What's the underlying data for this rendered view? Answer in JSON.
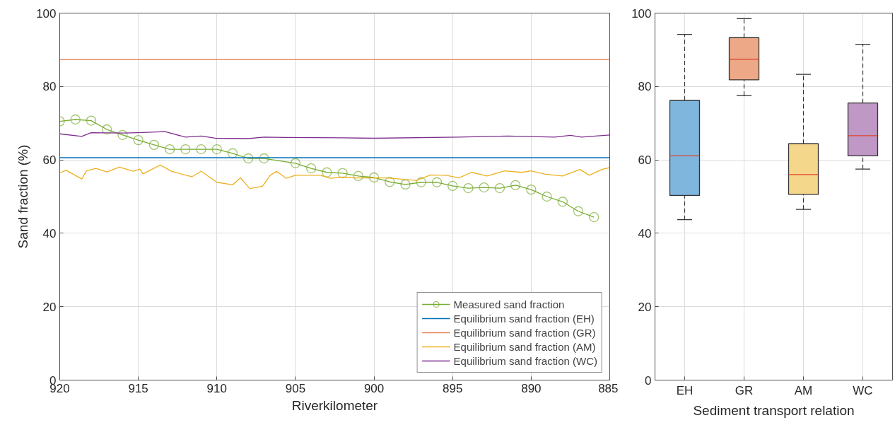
{
  "chart_data": [
    {
      "type": "line",
      "xlabel": "Riverkilometer",
      "ylabel": "Sand fraction (%)",
      "xlim": [
        920,
        885
      ],
      "xticks": [
        920,
        915,
        910,
        905,
        900,
        895,
        890,
        885
      ],
      "ylim": [
        0,
        100
      ],
      "yticks": [
        0,
        20,
        40,
        60,
        80,
        100
      ],
      "grid": true,
      "legend": "bottom right",
      "series": [
        {
          "name": "Measured sand fraction",
          "color": "#77ac30",
          "marker": "circle",
          "x": [
            920,
            919,
            918,
            917,
            916,
            915,
            914,
            913,
            912,
            911,
            910,
            909,
            908,
            907,
            905,
            904,
            903,
            902,
            901,
            900,
            899,
            898,
            897,
            896,
            895,
            894,
            893,
            892,
            891,
            890,
            889,
            888,
            887,
            886
          ],
          "values": [
            70.5,
            71.0,
            70.7,
            68.3,
            66.8,
            65.4,
            64.1,
            62.9,
            62.9,
            62.9,
            62.9,
            61.8,
            60.4,
            60.4,
            59.1,
            57.7,
            56.6,
            56.4,
            55.6,
            55.2,
            54.0,
            53.3,
            53.9,
            53.9,
            52.9,
            52.3,
            52.5,
            52.3,
            53.1,
            51.9,
            50.0,
            48.6,
            46.0,
            44.4
          ]
        },
        {
          "name": "Equilibrium sand fraction (EH)",
          "color": "#0072bd",
          "marker": "none",
          "x": [
            920,
            885
          ],
          "values": [
            60.6,
            60.6
          ]
        },
        {
          "name": "Equilibrium sand fraction (GR)",
          "color": "#e8845a",
          "marker": "none",
          "x": [
            920,
            885
          ],
          "values": [
            87.3,
            87.3
          ]
        },
        {
          "name": "Equilibrium sand fraction (AM)",
          "color": "#edb120",
          "marker": "none",
          "x": [
            920,
            919.6,
            918.6,
            918.3,
            917.7,
            917.0,
            916.2,
            915.3,
            914.9,
            914.7,
            913.6,
            912.9,
            911.6,
            911.0,
            910.0,
            909.0,
            908.5,
            907.9,
            907.1,
            906.6,
            906.2,
            905.6,
            905.0,
            903.4,
            902.8,
            902.0,
            901.1,
            899.2,
            897.3,
            896.4,
            895.4,
            894.6,
            893.8,
            892.8,
            891.7,
            890.6,
            890.0,
            889.1,
            888.0,
            886.9,
            886.3,
            885.5,
            885.0
          ],
          "values": [
            56.4,
            57.2,
            54.8,
            57.0,
            57.7,
            56.7,
            58.0,
            56.9,
            57.5,
            56.2,
            58.6,
            56.9,
            55.4,
            56.9,
            53.9,
            53.2,
            55.1,
            52.2,
            52.8,
            55.8,
            56.9,
            55.0,
            55.8,
            55.8,
            55.0,
            55.3,
            55.1,
            55.1,
            54.4,
            55.9,
            55.8,
            55.1,
            56.6,
            55.6,
            57.0,
            56.6,
            57.0,
            56.1,
            55.6,
            57.4,
            55.8,
            57.4,
            57.9
          ]
        },
        {
          "name": "Equilibrium sand fraction (WC)",
          "color": "#7e2f8e",
          "marker": "none",
          "x": [
            920,
            918.6,
            918.0,
            916.0,
            915.0,
            913.3,
            912.0,
            911.0,
            910.1,
            908.0,
            907.0,
            905.7,
            902.0,
            900.0,
            894.6,
            891.5,
            888.5,
            887.5,
            886.8,
            885.0
          ],
          "values": [
            67.1,
            66.4,
            67.4,
            67.3,
            67.4,
            67.7,
            66.2,
            66.5,
            65.9,
            65.8,
            66.2,
            66.1,
            66.0,
            65.9,
            66.2,
            66.5,
            66.2,
            66.7,
            66.2,
            66.8
          ]
        }
      ]
    },
    {
      "type": "box",
      "xlabel": "Sediment transport relation",
      "categories": [
        "EH",
        "GR",
        "AM",
        "WC"
      ],
      "ylim": [
        0,
        100
      ],
      "yticks": [
        0,
        20,
        40,
        60,
        80,
        100
      ],
      "grid": true,
      "colors": [
        "#7eb6de",
        "#eca887",
        "#f5d78b",
        "#bf98c6"
      ],
      "boxes": [
        {
          "low": 43.7,
          "q1": 50.3,
          "median": 61.1,
          "q3": 76.2,
          "high": 94.2
        },
        {
          "low": 77.5,
          "q1": 81.8,
          "median": 87.4,
          "q3": 93.3,
          "high": 98.5
        },
        {
          "low": 46.5,
          "q1": 50.6,
          "median": 56.0,
          "q3": 64.4,
          "high": 83.3
        },
        {
          "low": 57.5,
          "q1": 61.1,
          "median": 66.6,
          "q3": 75.5,
          "high": 91.5
        }
      ]
    }
  ]
}
